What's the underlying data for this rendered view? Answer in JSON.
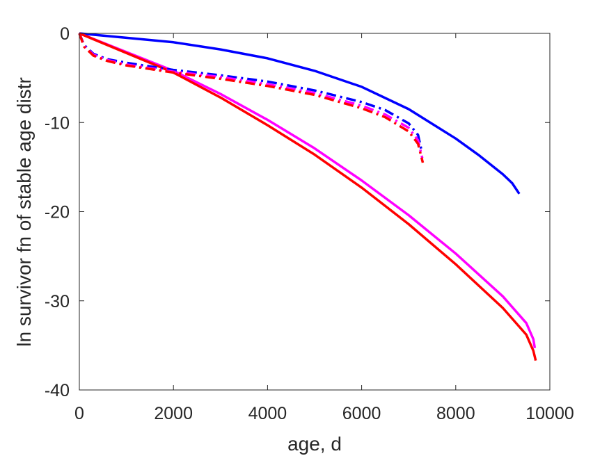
{
  "chart_data": {
    "type": "line",
    "title": "",
    "xlabel": "age, d",
    "ylabel": "ln survivor fn of stable age distr",
    "xlim": [
      0,
      10000
    ],
    "ylim": [
      -40,
      0
    ],
    "xticks": [
      0,
      2000,
      4000,
      6000,
      8000,
      10000
    ],
    "yticks": [
      -40,
      -30,
      -20,
      -10,
      0
    ],
    "xtick_labels": [
      "0",
      "2000",
      "4000",
      "6000",
      "8000",
      "10000"
    ],
    "ytick_labels": [
      "-40",
      "-30",
      "-20",
      "-10",
      "0"
    ],
    "grid": false,
    "legend": "none",
    "series": [
      {
        "color": "#0000ff",
        "style": "solid",
        "x": [
          0,
          1000,
          2000,
          3000,
          4000,
          5000,
          6000,
          7000,
          8000,
          8500,
          9000,
          9200,
          9350
        ],
        "y": [
          0,
          -0.5,
          -1.0,
          -1.8,
          -2.8,
          -4.2,
          -6.0,
          -8.5,
          -11.8,
          -13.7,
          -15.8,
          -16.8,
          -18.0
        ]
      },
      {
        "color": "#ff00ff",
        "style": "solid",
        "x": [
          0,
          1000,
          2000,
          3000,
          4000,
          5000,
          6000,
          7000,
          8000,
          9000,
          9500,
          9650,
          9680
        ],
        "y": [
          0,
          -2.1,
          -4.2,
          -6.8,
          -9.7,
          -12.9,
          -16.5,
          -20.4,
          -24.7,
          -29.5,
          -32.5,
          -34.3,
          -35.3
        ]
      },
      {
        "color": "#ff0000",
        "style": "solid",
        "x": [
          0,
          1000,
          2000,
          3000,
          4000,
          5000,
          6000,
          7000,
          8000,
          9000,
          9500,
          9650,
          9700
        ],
        "y": [
          0,
          -2.2,
          -4.4,
          -7.2,
          -10.3,
          -13.6,
          -17.3,
          -21.4,
          -25.9,
          -30.8,
          -33.8,
          -35.6,
          -36.7
        ]
      },
      {
        "color": "#0000ff",
        "style": "dashdot",
        "x": [
          0,
          100,
          300,
          600,
          1000,
          1500,
          2000,
          3000,
          4000,
          5000,
          6000,
          6500,
          7000,
          7200,
          7280
        ],
        "y": [
          0,
          -1.3,
          -2.3,
          -2.9,
          -3.3,
          -3.7,
          -4.1,
          -4.7,
          -5.4,
          -6.4,
          -7.7,
          -8.6,
          -10.1,
          -11.4,
          -13.3
        ]
      },
      {
        "color": "#ff00ff",
        "style": "dashdot",
        "x": [
          0,
          100,
          300,
          600,
          1000,
          1500,
          2000,
          3000,
          4000,
          5000,
          6000,
          6500,
          7000,
          7200,
          7290
        ],
        "y": [
          0,
          -1.4,
          -2.4,
          -3.0,
          -3.5,
          -3.9,
          -4.3,
          -4.9,
          -5.7,
          -6.7,
          -8.1,
          -9.1,
          -10.6,
          -12.0,
          -14.0
        ]
      },
      {
        "color": "#ff0000",
        "style": "dashdot",
        "x": [
          0,
          100,
          300,
          600,
          1000,
          1500,
          2000,
          3000,
          4000,
          5000,
          6000,
          6500,
          7000,
          7200,
          7300
        ],
        "y": [
          0,
          -1.5,
          -2.5,
          -3.1,
          -3.6,
          -4.0,
          -4.4,
          -5.1,
          -5.9,
          -6.9,
          -8.4,
          -9.4,
          -11.0,
          -12.4,
          -14.5
        ]
      }
    ]
  }
}
